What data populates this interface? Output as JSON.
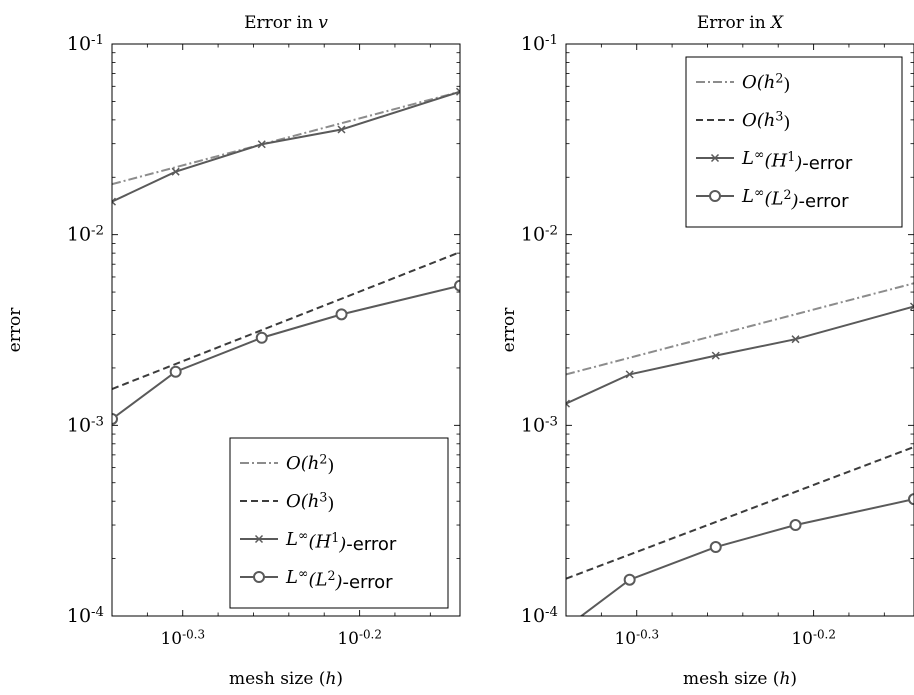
{
  "chart_data": [
    {
      "type": "line",
      "title": "Error in v",
      "xlabel": "mesh size (h)",
      "ylabel": "error",
      "x_scale": "log",
      "y_scale": "log",
      "xlim": [
        0.4571,
        0.7191
      ],
      "ylim": [
        0.0001,
        0.1
      ],
      "x_ticks": [
        {
          "value": 0.5012,
          "label": "10^{-0.3}"
        },
        {
          "value": 0.631,
          "label": "10^{-0.2}"
        }
      ],
      "y_ticks": [
        {
          "value": 0.0001,
          "label": "10^{-4}"
        },
        {
          "value": 0.001,
          "label": "10^{-3}"
        },
        {
          "value": 0.01,
          "label": "10^{-2}"
        },
        {
          "value": 0.1,
          "label": "10^{-1}"
        }
      ],
      "grid": false,
      "legend_position": "bottom-right",
      "series": [
        {
          "name": "O(h^2)",
          "style": "dashdot",
          "color": "#8c8c8c",
          "marker": "none",
          "x": [
            0.4571,
            0.7191
          ],
          "y": [
            0.0184,
            0.0562
          ]
        },
        {
          "name": "O(h^3)",
          "style": "dashed",
          "color": "#3c3c3c",
          "marker": "none",
          "x": [
            0.4571,
            0.7191
          ],
          "y": [
            0.00155,
            0.0081
          ]
        },
        {
          "name": "L^∞(H^1)-error",
          "style": "solid",
          "color": "#5a5a5a",
          "marker": "x",
          "x": [
            0.4571,
            0.4966,
            0.5555,
            0.6163,
            0.7191
          ],
          "y": [
            0.0149,
            0.0214,
            0.0298,
            0.0356,
            0.0562
          ]
        },
        {
          "name": "L^∞(L^2)-error",
          "style": "solid",
          "color": "#5a5a5a",
          "marker": "o",
          "x": [
            0.4571,
            0.4966,
            0.5555,
            0.6163,
            0.7191
          ],
          "y": [
            0.00108,
            0.00191,
            0.00288,
            0.00382,
            0.0054
          ]
        }
      ]
    },
    {
      "type": "line",
      "title": "Error in X",
      "xlabel": "mesh size (h)",
      "ylabel": "error",
      "x_scale": "log",
      "y_scale": "log",
      "xlim": [
        0.4571,
        0.7191
      ],
      "ylim": [
        0.0001,
        0.1
      ],
      "x_ticks": [
        {
          "value": 0.5012,
          "label": "10^{-0.3}"
        },
        {
          "value": 0.631,
          "label": "10^{-0.2}"
        }
      ],
      "y_ticks": [
        {
          "value": 0.0001,
          "label": "10^{-4}"
        },
        {
          "value": 0.001,
          "label": "10^{-3}"
        },
        {
          "value": 0.01,
          "label": "10^{-2}"
        },
        {
          "value": 0.1,
          "label": "10^{-1}"
        }
      ],
      "grid": false,
      "legend_position": "top-right",
      "series": [
        {
          "name": "O(h^2)",
          "style": "dashdot",
          "color": "#8c8c8c",
          "marker": "none",
          "x": [
            0.4571,
            0.7191
          ],
          "y": [
            0.00185,
            0.00556
          ]
        },
        {
          "name": "O(h^3)",
          "style": "dashed",
          "color": "#3c3c3c",
          "marker": "none",
          "x": [
            0.4571,
            0.7191
          ],
          "y": [
            0.000157,
            0.00077
          ]
        },
        {
          "name": "L^∞(H^1)-error",
          "style": "solid",
          "color": "#5a5a5a",
          "marker": "x",
          "x": [
            0.4571,
            0.4966,
            0.5555,
            0.6163,
            0.7191
          ],
          "y": [
            0.0013,
            0.00185,
            0.00232,
            0.00283,
            0.0042
          ]
        },
        {
          "name": "L^∞(L^2)-error",
          "style": "solid",
          "color": "#5a5a5a",
          "marker": "o",
          "x": [
            0.4571,
            0.4966,
            0.5555,
            0.6163,
            0.7191
          ],
          "y": [
            8.7e-05,
            0.000155,
            0.00023,
            0.0003,
            0.00041
          ]
        }
      ]
    }
  ]
}
